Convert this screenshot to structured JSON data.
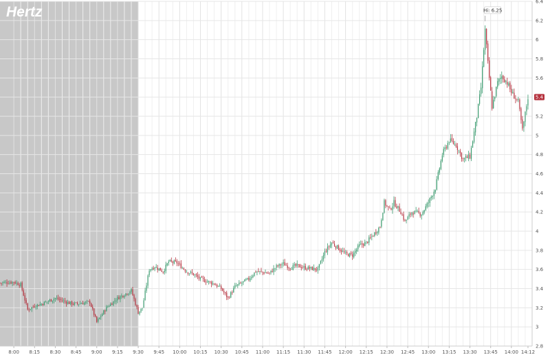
{
  "chart_data": {
    "type": "candlestick",
    "title": "Hertz",
    "xlabel": "",
    "ylabel": "",
    "x_range": [
      "07:50",
      "14:15"
    ],
    "y_range": [
      2.8,
      6.4
    ],
    "x_ticks": [
      "8:00",
      "8:15",
      "8:30",
      "8:45",
      "9:00",
      "9:15",
      "9:30",
      "9:45",
      "10:00",
      "10:15",
      "10:30",
      "10:45",
      "11:00",
      "11:15",
      "11:30",
      "11:45",
      "12:00",
      "12:15",
      "12:30",
      "12:45",
      "13:00",
      "13:15",
      "13:30",
      "13:45",
      "14:00",
      "14:12"
    ],
    "y_ticks": [
      "2.8",
      "3",
      "3.2",
      "3.4",
      "3.6",
      "3.8",
      "4",
      "4.2",
      "4.4",
      "4.6",
      "4.8",
      "5",
      "5.2",
      "5.4",
      "5.6",
      "5.8",
      "6",
      "6.2",
      "6.4"
    ],
    "premarket_shading": {
      "from": "07:50",
      "to": "09:30",
      "color": "#c8c8c8"
    },
    "grid": true,
    "up_color": "#3a9a6e",
    "down_color": "#b5323e",
    "annotations": [
      {
        "label": "Hi: 6.25",
        "time": "13:41",
        "value": 6.25
      }
    ],
    "last_price": {
      "label": "5.4",
      "value": 5.4,
      "color": "#b5323e"
    },
    "price_path": [
      [
        "07:50",
        3.46
      ],
      [
        "08:00",
        3.47
      ],
      [
        "08:05",
        3.44
      ],
      [
        "08:10",
        3.18
      ],
      [
        "08:15",
        3.22
      ],
      [
        "08:20",
        3.24
      ],
      [
        "08:30",
        3.3
      ],
      [
        "08:40",
        3.25
      ],
      [
        "08:45",
        3.24
      ],
      [
        "08:55",
        3.26
      ],
      [
        "09:00",
        3.05
      ],
      [
        "09:07",
        3.2
      ],
      [
        "09:15",
        3.3
      ],
      [
        "09:25",
        3.38
      ],
      [
        "09:30",
        3.15
      ],
      [
        "09:33",
        3.2
      ],
      [
        "09:38",
        3.6
      ],
      [
        "09:42",
        3.63
      ],
      [
        "09:48",
        3.58
      ],
      [
        "09:52",
        3.68
      ],
      [
        "09:58",
        3.67
      ],
      [
        "10:05",
        3.58
      ],
      [
        "10:10",
        3.55
      ],
      [
        "10:15",
        3.5
      ],
      [
        "10:25",
        3.45
      ],
      [
        "10:30",
        3.4
      ],
      [
        "10:35",
        3.3
      ],
      [
        "10:40",
        3.42
      ],
      [
        "10:50",
        3.5
      ],
      [
        "10:55",
        3.58
      ],
      [
        "11:05",
        3.56
      ],
      [
        "11:10",
        3.63
      ],
      [
        "11:15",
        3.66
      ],
      [
        "11:20",
        3.62
      ],
      [
        "11:25",
        3.64
      ],
      [
        "11:30",
        3.62
      ],
      [
        "11:35",
        3.61
      ],
      [
        "11:40",
        3.6
      ],
      [
        "11:45",
        3.78
      ],
      [
        "11:50",
        3.88
      ],
      [
        "11:55",
        3.82
      ],
      [
        "12:00",
        3.76
      ],
      [
        "12:05",
        3.75
      ],
      [
        "12:10",
        3.85
      ],
      [
        "12:15",
        3.88
      ],
      [
        "12:20",
        3.96
      ],
      [
        "12:25",
        4.05
      ],
      [
        "12:28",
        4.3
      ],
      [
        "12:32",
        4.22
      ],
      [
        "12:35",
        4.3
      ],
      [
        "12:40",
        4.2
      ],
      [
        "12:43",
        4.1
      ],
      [
        "12:48",
        4.2
      ],
      [
        "12:55",
        4.18
      ],
      [
        "13:00",
        4.3
      ],
      [
        "13:05",
        4.45
      ],
      [
        "13:10",
        4.8
      ],
      [
        "13:15",
        4.95
      ],
      [
        "13:20",
        4.9
      ],
      [
        "13:25",
        4.75
      ],
      [
        "13:30",
        4.78
      ],
      [
        "13:35",
        5.2
      ],
      [
        "13:38",
        5.5
      ],
      [
        "13:41",
        6.1
      ],
      [
        "13:43",
        5.75
      ],
      [
        "13:46",
        5.3
      ],
      [
        "13:50",
        5.55
      ],
      [
        "13:53",
        5.62
      ],
      [
        "13:57",
        5.55
      ],
      [
        "14:00",
        5.45
      ],
      [
        "14:05",
        5.35
      ],
      [
        "14:08",
        5.05
      ],
      [
        "14:12",
        5.4
      ]
    ]
  }
}
